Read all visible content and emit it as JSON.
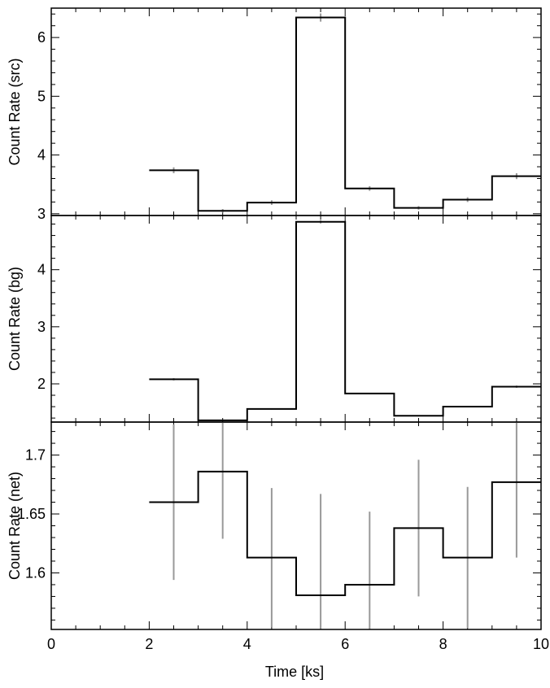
{
  "chart_data": {
    "type": "line",
    "xlabel": "Time [ks]",
    "xlim": [
      0,
      10
    ],
    "x_ticks": [
      0,
      2,
      4,
      6,
      8,
      10
    ],
    "x_tick_labels": [
      "0",
      "2",
      "4",
      "6",
      "8",
      "10"
    ],
    "bin_edges": [
      2,
      3,
      4,
      5,
      6,
      7,
      8,
      9,
      10
    ],
    "bin_centers": [
      2.5,
      3.5,
      4.5,
      5.5,
      6.5,
      7.5,
      8.5,
      9.5
    ],
    "step_color": "#000000",
    "errorbar_color": "#999999",
    "panels": [
      {
        "ylabel": "Count Rate (src)",
        "ylim": [
          2.97,
          6.5
        ],
        "y_ticks": [
          3,
          4,
          5,
          6
        ],
        "y_tick_labels": [
          "3",
          "4",
          "5",
          "6"
        ],
        "values": [
          3.74,
          3.05,
          3.19,
          6.34,
          3.43,
          3.1,
          3.24,
          3.64
        ],
        "errors": [
          0.05,
          0.03,
          0.04,
          0.07,
          0.04,
          0.03,
          0.04,
          0.05
        ]
      },
      {
        "ylabel": "Count Rate (bg)",
        "ylim": [
          1.33,
          4.95
        ],
        "y_ticks": [
          2,
          3,
          4
        ],
        "y_tick_labels": [
          "2",
          "3",
          "4"
        ],
        "values": [
          2.08,
          1.36,
          1.56,
          4.84,
          1.83,
          1.44,
          1.6,
          1.95
        ],
        "errors": [
          0.02,
          0.01,
          0.01,
          0.03,
          0.01,
          0.01,
          0.01,
          0.02
        ]
      },
      {
        "ylabel": "Count Rate (net)",
        "ylim": [
          1.552,
          1.728
        ],
        "y_ticks": [
          1.6,
          1.65,
          1.7
        ],
        "y_tick_labels": [
          "1.6",
          "1.65",
          "1.7"
        ],
        "values": [
          1.66,
          1.686,
          1.613,
          1.581,
          1.59,
          1.638,
          1.613,
          1.677
        ],
        "errors": [
          0.066,
          0.057,
          0.059,
          0.086,
          0.062,
          0.058,
          0.06,
          0.064
        ]
      }
    ]
  }
}
